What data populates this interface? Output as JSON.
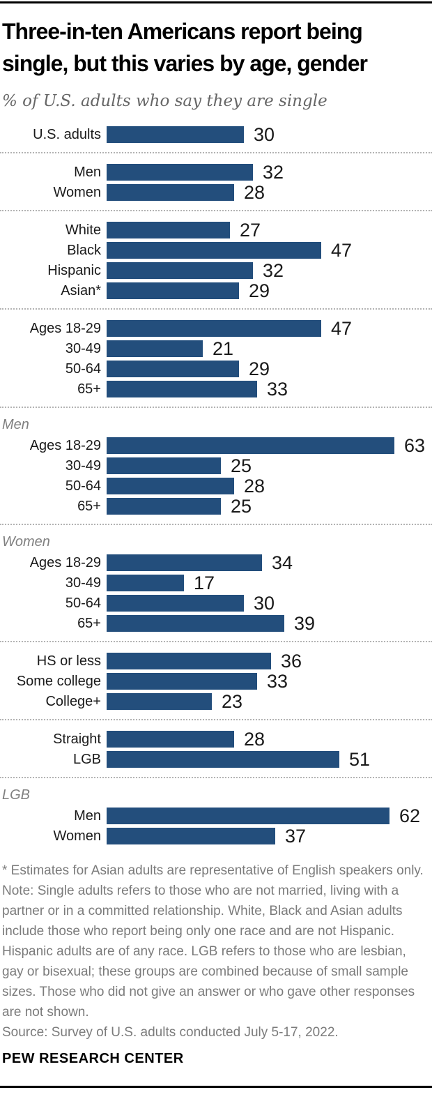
{
  "header": {
    "title": "Three-in-ten Americans report being single, but this varies by age, gender",
    "subtitle": "% of U.S. adults who say they are single"
  },
  "chart_data": {
    "type": "bar",
    "orientation": "horizontal",
    "unit": "%",
    "bar_color": "#234E7C",
    "xlim": [
      0,
      63
    ],
    "grid": false,
    "legend": false,
    "value_labels_position": "right-of-bar",
    "groups": [
      {
        "header": "",
        "rows": [
          {
            "label": "U.S. adults",
            "value": 30
          }
        ]
      },
      {
        "header": "",
        "rows": [
          {
            "label": "Men",
            "value": 32
          },
          {
            "label": "Women",
            "value": 28
          }
        ]
      },
      {
        "header": "",
        "rows": [
          {
            "label": "White",
            "value": 27
          },
          {
            "label": "Black",
            "value": 47
          },
          {
            "label": "Hispanic",
            "value": 32
          },
          {
            "label": "Asian*",
            "value": 29
          }
        ]
      },
      {
        "header": "",
        "rows": [
          {
            "label": "Ages 18-29",
            "value": 47
          },
          {
            "label": "30-49",
            "value": 21
          },
          {
            "label": "50-64",
            "value": 29
          },
          {
            "label": "65+",
            "value": 33
          }
        ]
      },
      {
        "header": "Men",
        "rows": [
          {
            "label": "Ages 18-29",
            "value": 63
          },
          {
            "label": "30-49",
            "value": 25
          },
          {
            "label": "50-64",
            "value": 28
          },
          {
            "label": "65+",
            "value": 25
          }
        ]
      },
      {
        "header": "Women",
        "rows": [
          {
            "label": "Ages 18-29",
            "value": 34
          },
          {
            "label": "30-49",
            "value": 17
          },
          {
            "label": "50-64",
            "value": 30
          },
          {
            "label": "65+",
            "value": 39
          }
        ]
      },
      {
        "header": "",
        "rows": [
          {
            "label": "HS or less",
            "value": 36
          },
          {
            "label": "Some college",
            "value": 33
          },
          {
            "label": "College+",
            "value": 23
          }
        ]
      },
      {
        "header": "",
        "rows": [
          {
            "label": "Straight",
            "value": 28
          },
          {
            "label": "LGB",
            "value": 51
          }
        ]
      },
      {
        "header": "LGB",
        "rows": [
          {
            "label": "Men",
            "value": 62
          },
          {
            "label": "Women",
            "value": 37
          }
        ]
      }
    ]
  },
  "footer": {
    "asterisk_note": "* Estimates for Asian adults are representative of English speakers only.",
    "note": "Note: Single adults refers to those who are not married, living with a partner or in a committed relationship. White, Black and Asian adults include those who report being only one race and are not Hispanic. Hispanic adults are of any race. LGB refers to those who are lesbian, gay or bisexual; these groups are combined because of small sample sizes. Those who did not give an answer or who gave other responses are not shown.",
    "source": "Source: Survey of U.S. adults conducted July 5-17, 2022.",
    "brand": "PEW RESEARCH CENTER"
  }
}
